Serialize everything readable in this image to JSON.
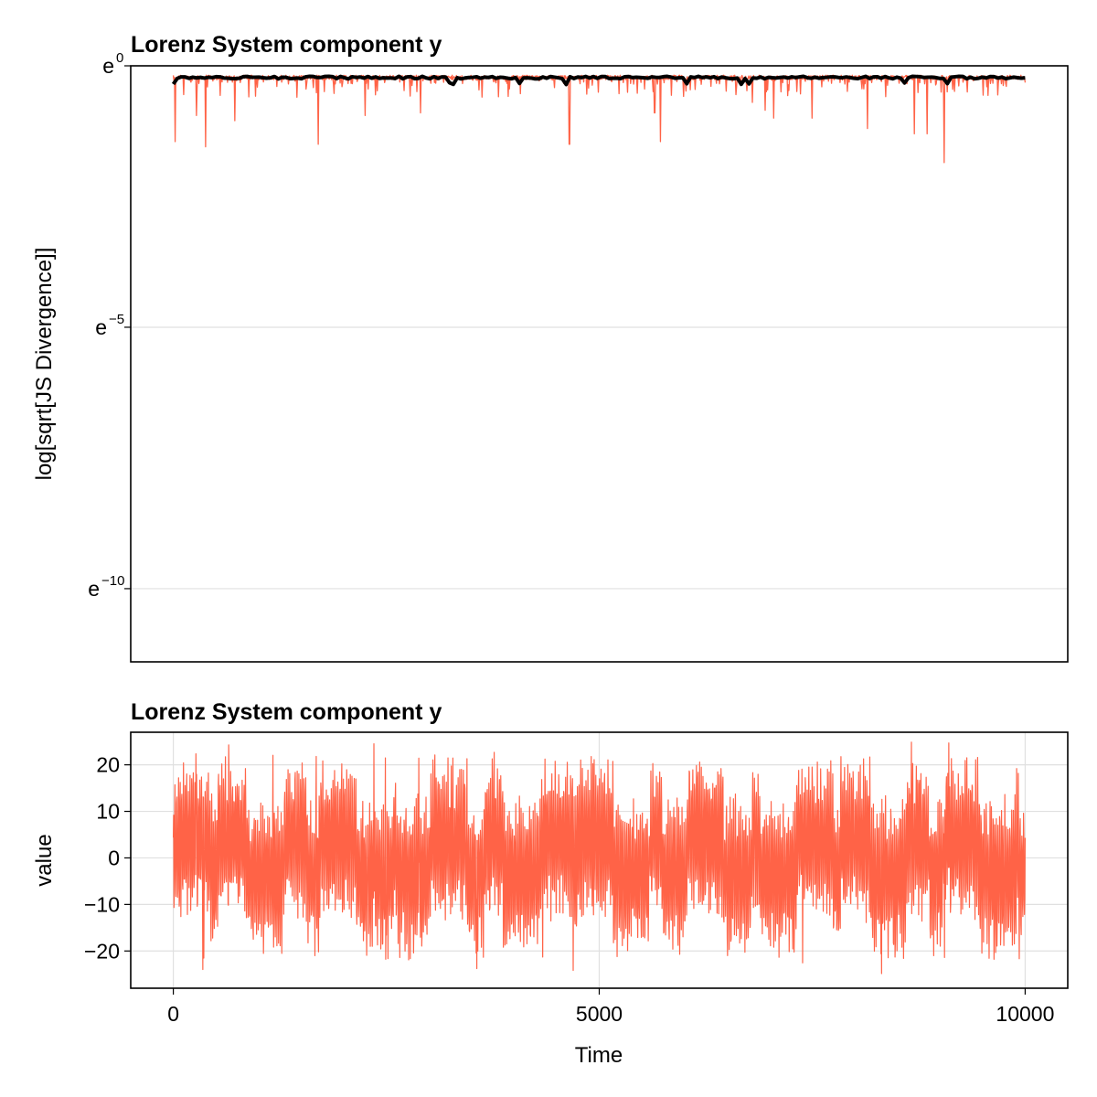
{
  "chart_data": [
    {
      "type": "line",
      "title": "Lorenz System component y",
      "xlabel": "",
      "ylabel": "log[sqrt[JS Divergence]]",
      "y_scale": "log (base e)",
      "xlim": [
        -500,
        10500
      ],
      "ylim_log": [
        -11.4,
        0
      ],
      "y_ticks": [
        {
          "base": "e",
          "exp": "0",
          "log_value": 0
        },
        {
          "base": "e",
          "exp": "−5",
          "log_value": -5
        },
        {
          "base": "e",
          "exp": "−10",
          "log_value": -10
        }
      ],
      "grid": "horizontal",
      "series": [
        {
          "color": "#ff6347",
          "style": "thin line",
          "baseline_log_range": [
            -0.35,
            -0.18
          ],
          "dips": [
            {
              "x": 20,
              "y_log": -1.45
            },
            {
              "x": 120,
              "y_log": -0.55
            },
            {
              "x": 270,
              "y_log": -0.95
            },
            {
              "x": 380,
              "y_log": -1.55
            },
            {
              "x": 720,
              "y_log": -1.05
            },
            {
              "x": 1450,
              "y_log": -0.6
            },
            {
              "x": 1700,
              "y_log": -1.5
            },
            {
              "x": 2250,
              "y_log": -0.95
            },
            {
              "x": 2900,
              "y_log": -0.9
            },
            {
              "x": 4650,
              "y_log": -1.5
            },
            {
              "x": 5650,
              "y_log": -0.9
            },
            {
              "x": 5720,
              "y_log": -1.45
            },
            {
              "x": 6800,
              "y_log": -0.7
            },
            {
              "x": 6950,
              "y_log": -0.85
            },
            {
              "x": 7050,
              "y_log": -1.0
            },
            {
              "x": 7500,
              "y_log": -1.0
            },
            {
              "x": 8150,
              "y_log": -1.2
            },
            {
              "x": 8700,
              "y_log": -1.3
            },
            {
              "x": 8850,
              "y_log": -1.3
            },
            {
              "x": 9050,
              "y_log": -1.85
            },
            {
              "x": 9150,
              "y_log": -0.45
            },
            {
              "x": 9550,
              "y_log": -0.4
            }
          ]
        },
        {
          "color": "#000000",
          "style": "thick line",
          "x_range": [
            0,
            10000
          ],
          "y_log_approx": -0.2
        }
      ]
    },
    {
      "type": "line",
      "title": "Lorenz System component y",
      "xlabel": "Time",
      "ylabel": "value",
      "xlim": [
        -500,
        10500
      ],
      "ylim": [
        -28,
        27
      ],
      "x_ticks": [
        "0",
        "5000",
        "10000"
      ],
      "y_ticks": [
        "20",
        "10",
        "0",
        "−10",
        "−20"
      ],
      "grid": "both",
      "series": [
        {
          "color": "#ff6347",
          "x_range": [
            0,
            10000
          ],
          "value_range": [
            -25,
            25
          ]
        }
      ]
    }
  ]
}
